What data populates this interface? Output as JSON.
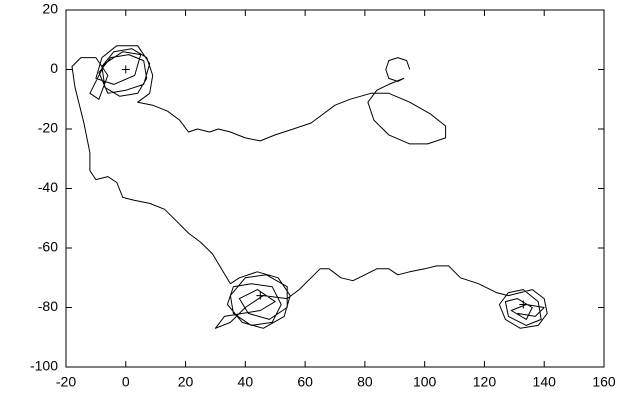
{
  "chart_data": {
    "type": "line",
    "xlim": [
      -20,
      160
    ],
    "xticks": [
      -20,
      0,
      20,
      40,
      60,
      80,
      100,
      120,
      140,
      160
    ],
    "ylim": [
      -100,
      20
    ],
    "yticks": [
      -100,
      -80,
      -60,
      -40,
      -20,
      0,
      20
    ],
    "series": [
      {
        "color": "#000000",
        "x": [
          95,
          94,
          91,
          88,
          87,
          88,
          91,
          93,
          88,
          84,
          81,
          83,
          88,
          95,
          101,
          107,
          107,
          102,
          95,
          88,
          82,
          75,
          70,
          66,
          62,
          56,
          50,
          45,
          40,
          35,
          31,
          28,
          24,
          21,
          18,
          14,
          9,
          4,
          8,
          9,
          7,
          2,
          -4,
          -8,
          -7,
          -2,
          4,
          7,
          6,
          1,
          -5,
          -9,
          -6,
          0,
          6,
          8,
          4,
          -3,
          -8,
          -10,
          -4,
          3,
          5,
          -1,
          -7,
          -12,
          -9,
          -6,
          -10,
          -15,
          -18,
          -17,
          -14,
          -12,
          -12,
          -10,
          -6,
          -3,
          -1,
          3,
          8,
          13,
          17,
          21,
          25,
          29,
          32,
          35,
          38,
          44,
          51,
          55,
          53,
          46,
          39,
          34,
          36,
          42,
          49,
          52,
          49,
          42,
          36,
          35,
          40,
          47,
          54,
          54,
          48,
          41,
          38,
          44,
          50,
          45,
          33,
          30,
          35,
          40,
          46,
          54,
          58,
          62,
          65,
          68,
          72,
          76,
          80,
          84,
          88,
          91,
          95,
          100,
          104,
          108,
          112,
          118,
          124,
          128,
          136,
          140,
          141,
          138,
          132,
          127,
          125,
          128,
          133,
          138,
          139,
          134,
          128,
          127,
          131,
          136,
          134,
          129,
          134,
          140,
          137,
          131
        ],
        "y": [
          0,
          3,
          4,
          3,
          0,
          -3,
          -4,
          -3,
          -5,
          -7,
          -11,
          -17,
          -22,
          -25,
          -25,
          -23,
          -19,
          -15,
          -11,
          -8,
          -8,
          -10,
          -12,
          -15,
          -18,
          -20,
          -22,
          -24,
          -23,
          -21,
          -20,
          -21,
          -20,
          -21,
          -17,
          -14,
          -12,
          -11,
          -8,
          -2,
          4,
          7,
          6,
          1,
          -6,
          -9,
          -8,
          -3,
          3,
          5,
          4,
          -1,
          -8,
          -7,
          -5,
          2,
          8,
          8,
          4,
          -3,
          -5,
          -2,
          5,
          6,
          2,
          -8,
          -10,
          -2,
          4,
          4,
          1,
          -6,
          -18,
          -28,
          -34,
          -37,
          -36,
          -38,
          -43,
          -44,
          -45,
          -47,
          -51,
          -55,
          -58,
          -62,
          -67,
          -72,
          -70,
          -68,
          -70,
          -76,
          -83,
          -87,
          -85,
          -79,
          -73,
          -72,
          -73,
          -79,
          -85,
          -86,
          -82,
          -76,
          -70,
          -69,
          -73,
          -80,
          -84,
          -82,
          -77,
          -74,
          -78,
          -81,
          -83,
          -87,
          -85,
          -80,
          -76,
          -77,
          -74,
          -70,
          -67,
          -67,
          -70,
          -71,
          -69,
          -67,
          -67,
          -69,
          -68,
          -67,
          -66,
          -66,
          -70,
          -72,
          -75,
          -76,
          -74,
          -77,
          -82,
          -86,
          -87,
          -84,
          -79,
          -75,
          -74,
          -78,
          -84,
          -86,
          -83,
          -78,
          -77,
          -80,
          -84,
          -81,
          -79,
          -80,
          -83,
          -82
        ]
      },
      {
        "color": "#000000",
        "marker": "+",
        "x": [
          0,
          45,
          133
        ],
        "y": [
          0,
          -76,
          -79
        ]
      }
    ]
  }
}
